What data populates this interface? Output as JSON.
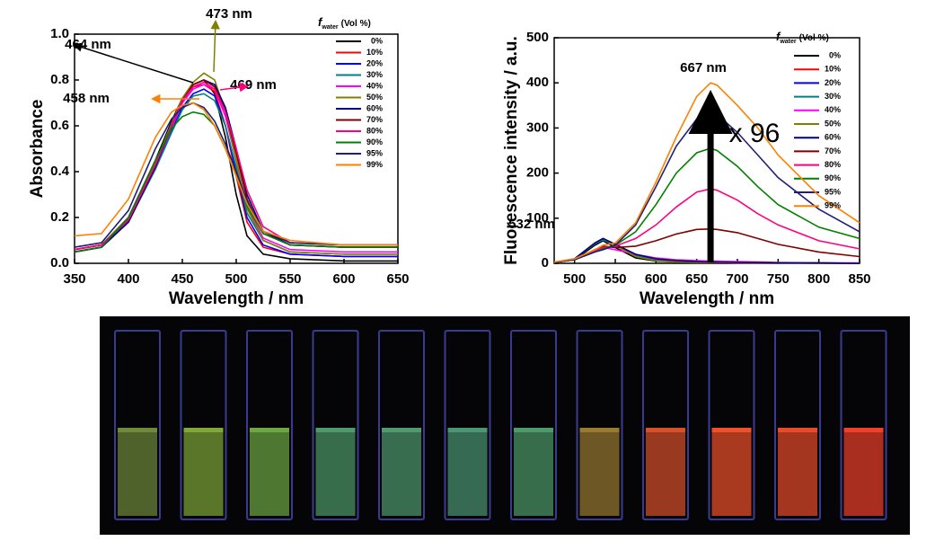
{
  "chart_data": [
    {
      "type": "line",
      "ylabel": "Absorbance",
      "xlabel": "Wavelength / nm",
      "xlim": [
        350,
        650
      ],
      "xticks": [
        350,
        400,
        450,
        500,
        550,
        600,
        650
      ],
      "ylim": [
        0,
        1
      ],
      "yticks": [
        {
          "value": 0,
          "label": "0.0"
        },
        {
          "value": 0.2,
          "label": "0.2"
        },
        {
          "value": 0.4,
          "label": "0.4"
        },
        {
          "value": 0.6,
          "label": "0.6"
        },
        {
          "value": 0.8,
          "label": "0.8"
        },
        {
          "value": 1,
          "label": "1.0"
        }
      ],
      "legend_title": {
        "symbol": "f",
        "subscript": "water",
        "unit": "(Vol %)"
      },
      "annotations": [
        "464 nm",
        "473 nm",
        "458 nm",
        "469 nm"
      ],
      "x": [
        350,
        375,
        400,
        425,
        440,
        450,
        460,
        470,
        480,
        490,
        500,
        510,
        525,
        550,
        600,
        650
      ],
      "series": [
        {
          "name": "0%",
          "color": "#000000",
          "values": [
            0.06,
            0.08,
            0.2,
            0.45,
            0.62,
            0.72,
            0.78,
            0.8,
            0.74,
            0.55,
            0.3,
            0.12,
            0.04,
            0.02,
            0.01,
            0.01
          ]
        },
        {
          "name": "10%",
          "color": "#ff0000",
          "values": [
            0.06,
            0.08,
            0.19,
            0.43,
            0.6,
            0.7,
            0.77,
            0.78,
            0.75,
            0.6,
            0.38,
            0.18,
            0.07,
            0.04,
            0.03,
            0.03
          ]
        },
        {
          "name": "20%",
          "color": "#0000ff",
          "values": [
            0.05,
            0.07,
            0.18,
            0.42,
            0.58,
            0.68,
            0.74,
            0.76,
            0.73,
            0.6,
            0.4,
            0.2,
            0.08,
            0.04,
            0.03,
            0.03
          ]
        },
        {
          "name": "30%",
          "color": "#008080",
          "values": [
            0.05,
            0.07,
            0.18,
            0.41,
            0.57,
            0.67,
            0.73,
            0.74,
            0.71,
            0.6,
            0.42,
            0.22,
            0.1,
            0.05,
            0.04,
            0.04
          ]
        },
        {
          "name": "40%",
          "color": "#ff00ff",
          "values": [
            0.05,
            0.07,
            0.18,
            0.42,
            0.59,
            0.7,
            0.76,
            0.78,
            0.76,
            0.64,
            0.45,
            0.25,
            0.11,
            0.06,
            0.05,
            0.05
          ]
        },
        {
          "name": "50%",
          "color": "#808000",
          "values": [
            0.06,
            0.08,
            0.2,
            0.44,
            0.61,
            0.72,
            0.79,
            0.83,
            0.8,
            0.66,
            0.45,
            0.24,
            0.1,
            0.05,
            0.04,
            0.04
          ]
        },
        {
          "name": "60%",
          "color": "#000080",
          "values": [
            0.05,
            0.07,
            0.18,
            0.42,
            0.6,
            0.71,
            0.78,
            0.8,
            0.78,
            0.68,
            0.5,
            0.3,
            0.14,
            0.08,
            0.07,
            0.07
          ]
        },
        {
          "name": "70%",
          "color": "#800000",
          "values": [
            0.06,
            0.08,
            0.19,
            0.43,
            0.6,
            0.71,
            0.78,
            0.8,
            0.77,
            0.66,
            0.48,
            0.28,
            0.13,
            0.08,
            0.07,
            0.07
          ]
        },
        {
          "name": "80%",
          "color": "#ff0080",
          "values": [
            0.06,
            0.08,
            0.19,
            0.43,
            0.6,
            0.71,
            0.77,
            0.79,
            0.76,
            0.66,
            0.5,
            0.32,
            0.16,
            0.09,
            0.08,
            0.08
          ]
        },
        {
          "name": "90%",
          "color": "#008000",
          "values": [
            0.05,
            0.07,
            0.2,
            0.45,
            0.59,
            0.64,
            0.66,
            0.65,
            0.6,
            0.5,
            0.38,
            0.25,
            0.13,
            0.08,
            0.07,
            0.07
          ]
        },
        {
          "name": "95%",
          "color": "#1f1f7a",
          "values": [
            0.07,
            0.09,
            0.23,
            0.5,
            0.63,
            0.68,
            0.7,
            0.68,
            0.62,
            0.52,
            0.4,
            0.27,
            0.14,
            0.09,
            0.08,
            0.08
          ]
        },
        {
          "name": "99%",
          "color": "#ff8000",
          "values": [
            0.12,
            0.13,
            0.28,
            0.55,
            0.66,
            0.69,
            0.7,
            0.67,
            0.6,
            0.5,
            0.38,
            0.26,
            0.14,
            0.1,
            0.08,
            0.08
          ]
        }
      ]
    },
    {
      "type": "line",
      "ylabel": "Fluorescence intensity / a.u.",
      "xlabel": "Wavelength / nm",
      "xlim": [
        475,
        850
      ],
      "xticks": [
        500,
        550,
        600,
        650,
        700,
        750,
        800,
        850
      ],
      "ylim": [
        0,
        500
      ],
      "yticks": [
        0,
        100,
        200,
        300,
        400,
        500
      ],
      "legend_title": {
        "symbol": "f",
        "subscript": "water",
        "unit": "(Vol %)"
      },
      "annotations": [
        "532 nm",
        "667 nm",
        "x 96"
      ],
      "x": [
        475,
        500,
        525,
        535,
        550,
        575,
        600,
        625,
        650,
        667,
        675,
        700,
        725,
        750,
        800,
        850
      ],
      "series": [
        {
          "name": "0%",
          "color": "#000000",
          "values": [
            2,
            8,
            40,
            50,
            35,
            12,
            5,
            3,
            2,
            2,
            2,
            1,
            1,
            1,
            0,
            0
          ]
        },
        {
          "name": "10%",
          "color": "#ff0000",
          "values": [
            2,
            10,
            45,
            55,
            40,
            15,
            6,
            3,
            2,
            2,
            2,
            1,
            1,
            1,
            0,
            0
          ]
        },
        {
          "name": "20%",
          "color": "#0000ff",
          "values": [
            2,
            10,
            45,
            55,
            42,
            20,
            10,
            6,
            4,
            3,
            3,
            2,
            2,
            1,
            1,
            0
          ]
        },
        {
          "name": "30%",
          "color": "#008080",
          "values": [
            2,
            10,
            43,
            52,
            40,
            18,
            8,
            5,
            3,
            3,
            3,
            2,
            2,
            1,
            1,
            0
          ]
        },
        {
          "name": "40%",
          "color": "#ff00ff",
          "values": [
            2,
            8,
            30,
            35,
            30,
            20,
            12,
            8,
            6,
            5,
            5,
            4,
            3,
            2,
            1,
            1
          ]
        },
        {
          "name": "50%",
          "color": "#808000",
          "values": [
            2,
            10,
            45,
            55,
            40,
            15,
            6,
            3,
            2,
            2,
            2,
            1,
            1,
            1,
            0,
            0
          ]
        },
        {
          "name": "60%",
          "color": "#000080",
          "values": [
            2,
            10,
            45,
            55,
            42,
            20,
            10,
            6,
            4,
            3,
            3,
            2,
            2,
            1,
            1,
            0
          ]
        },
        {
          "name": "70%",
          "color": "#800000",
          "values": [
            2,
            8,
            30,
            38,
            35,
            38,
            50,
            65,
            75,
            76,
            75,
            68,
            55,
            42,
            25,
            15
          ]
        },
        {
          "name": "80%",
          "color": "#ff0080",
          "values": [
            2,
            8,
            28,
            35,
            38,
            55,
            85,
            125,
            158,
            165,
            162,
            140,
            110,
            85,
            50,
            32
          ]
        },
        {
          "name": "90%",
          "color": "#008000",
          "values": [
            2,
            8,
            25,
            32,
            40,
            70,
            130,
            200,
            245,
            255,
            250,
            215,
            170,
            130,
            80,
            55
          ]
        },
        {
          "name": "95%",
          "color": "#1f1f7a",
          "values": [
            2,
            8,
            25,
            30,
            40,
            85,
            170,
            260,
            320,
            335,
            330,
            290,
            240,
            190,
            120,
            70
          ]
        },
        {
          "name": "99%",
          "color": "#ff8000",
          "values": [
            3,
            10,
            30,
            40,
            45,
            90,
            180,
            280,
            370,
            400,
            395,
            350,
            300,
            240,
            150,
            90
          ]
        }
      ]
    }
  ]
}
